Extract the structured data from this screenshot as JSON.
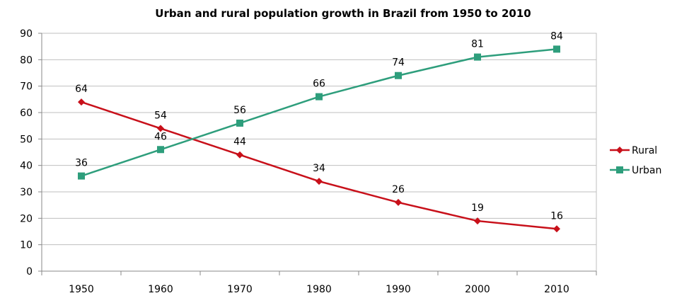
{
  "chart_data": {
    "type": "line",
    "title": "Urban and rural population growth in Brazil from 1950 to 2010",
    "xlabel": "",
    "ylabel": "",
    "categories": [
      "1950",
      "1960",
      "1970",
      "1980",
      "1990",
      "2000",
      "2010"
    ],
    "ylim": [
      0,
      90
    ],
    "yticks": [
      0,
      10,
      20,
      30,
      40,
      50,
      60,
      70,
      80,
      90
    ],
    "grid": true,
    "legend_position": "right",
    "series": [
      {
        "name": "Rural",
        "values": [
          64,
          54,
          44,
          34,
          26,
          19,
          16
        ],
        "color": "#C8101A",
        "marker": "diamond"
      },
      {
        "name": "Urban",
        "values": [
          36,
          46,
          56,
          66,
          74,
          81,
          84
        ],
        "color": "#2E9E7C",
        "marker": "square"
      }
    ]
  }
}
